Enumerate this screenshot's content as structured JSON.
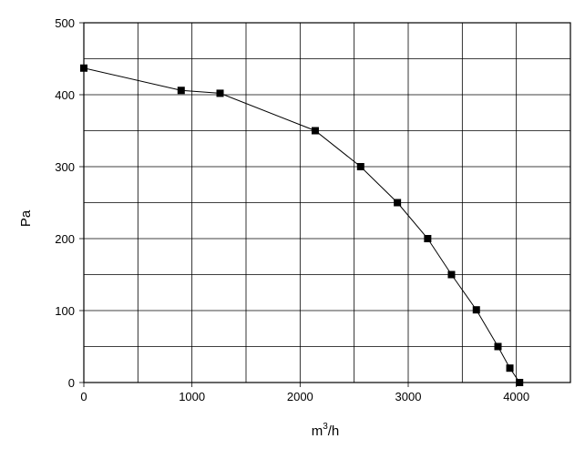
{
  "chart_data": {
    "type": "line",
    "title": "",
    "xlabel_base": "m",
    "xlabel_sup": "3",
    "xlabel_rest": "/h",
    "ylabel": "Pa",
    "xlim": [
      0,
      4500
    ],
    "ylim": [
      0,
      500
    ],
    "x_ticks": [
      0,
      1000,
      2000,
      3000,
      4000
    ],
    "x_tick_labels": [
      "0",
      "1000",
      "2000",
      "3000",
      "4000"
    ],
    "y_ticks": [
      0,
      100,
      200,
      300,
      400,
      500
    ],
    "y_tick_labels": [
      "0",
      "100",
      "200",
      "300",
      "400",
      "500"
    ],
    "x_grid_step": 500,
    "y_grid_step": 50,
    "grid": true,
    "legend": "none",
    "series": [
      {
        "x": [
          0,
          900,
          1260,
          2140,
          2560,
          2900,
          3180,
          3400,
          3630,
          3830,
          3940,
          4030
        ],
        "y": [
          437,
          406,
          402,
          350,
          300,
          250,
          200,
          150,
          101,
          50,
          20,
          0
        ]
      }
    ]
  }
}
